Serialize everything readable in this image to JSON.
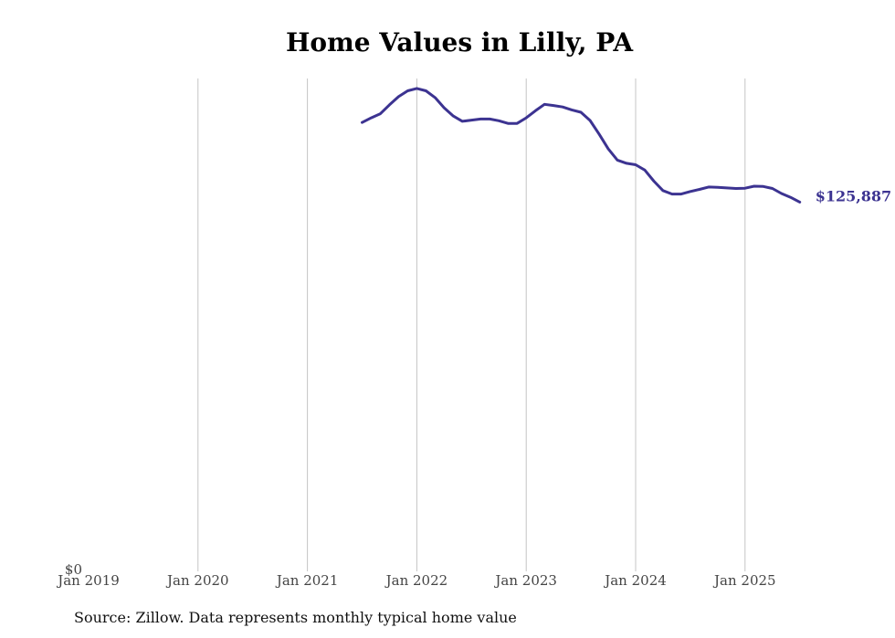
{
  "chart_data": {
    "type": "line",
    "title": "Home Values in Lilly, PA",
    "source": "Source: Zillow. Data represents monthly typical home value",
    "x_ticks": [
      "Jan 2019",
      "Jan 2020",
      "Jan 2021",
      "Jan 2022",
      "Jan 2023",
      "Jan 2024",
      "Jan 2025"
    ],
    "y_ticks": [
      "$0"
    ],
    "ylim": [
      0,
      168000
    ],
    "grid": "vertical",
    "line_color": "#3c3391",
    "end_label": "$125,887",
    "series": [
      {
        "dates": [
          "2021-07",
          "2021-08",
          "2021-09",
          "2021-10",
          "2021-11",
          "2021-12",
          "2022-01",
          "2022-02",
          "2022-03",
          "2022-04",
          "2022-05",
          "2022-06",
          "2022-07",
          "2022-08",
          "2022-09",
          "2022-10",
          "2022-11",
          "2022-12",
          "2023-01",
          "2023-02",
          "2023-03",
          "2023-04",
          "2023-05",
          "2023-06",
          "2023-07",
          "2023-08",
          "2023-09",
          "2023-10",
          "2023-11",
          "2023-12",
          "2024-01",
          "2024-02",
          "2024-03",
          "2024-04",
          "2024-05",
          "2024-06",
          "2024-07",
          "2024-08",
          "2024-09",
          "2024-10",
          "2024-11",
          "2024-12",
          "2025-01",
          "2025-02",
          "2025-03",
          "2025-04",
          "2025-05",
          "2025-06",
          "2025-07"
        ],
        "values": [
          153000,
          154600,
          156000,
          159000,
          161800,
          163800,
          164600,
          163800,
          161500,
          158000,
          155200,
          153400,
          153800,
          154200,
          154200,
          153600,
          152700,
          152700,
          154600,
          157000,
          159200,
          158800,
          158300,
          157300,
          156500,
          153700,
          149000,
          144000,
          140200,
          139100,
          138600,
          136800,
          133000,
          129800,
          128600,
          128600,
          129500,
          130200,
          131000,
          130900,
          130700,
          130500,
          130600,
          131300,
          131200,
          130500,
          128800,
          127500,
          125887
        ]
      }
    ]
  }
}
